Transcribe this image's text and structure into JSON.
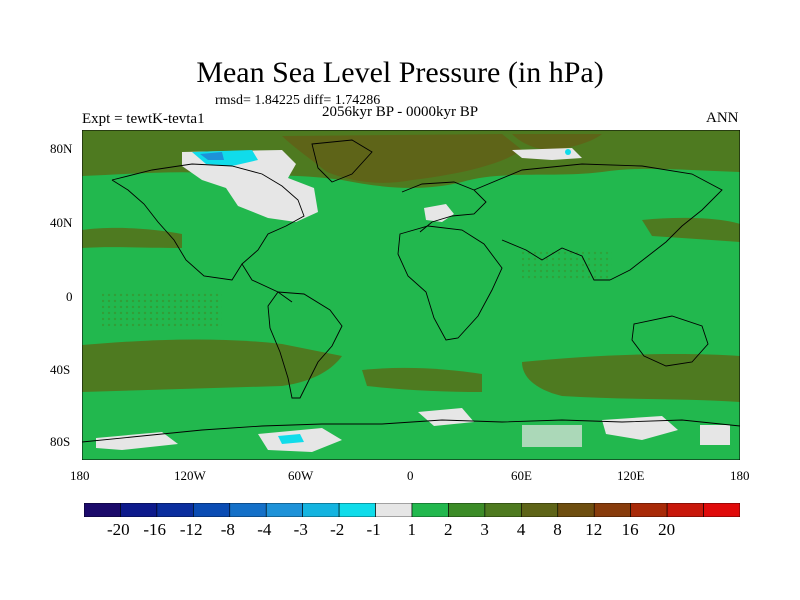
{
  "title": "Mean Sea Level Pressure (in hPa)",
  "stats_label": "rmsd= 1.84225 diff= 1.74286",
  "experiment_label": "Expt = tewtK-tevta1",
  "period_label": "2056kyr BP - 0000kyr BP",
  "season_label": "ANN",
  "lat_labels": [
    "80N",
    "40N",
    "0",
    "40S",
    "80S"
  ],
  "lon_labels": [
    "180",
    "120W",
    "60W",
    "0",
    "60E",
    "120E",
    "180"
  ],
  "colorbar": {
    "colors": [
      "#1b0a6b",
      "#0d1a8c",
      "#0a2e9e",
      "#0a4cb4",
      "#1470c8",
      "#1e92d8",
      "#14b4e0",
      "#10dcea",
      "#e6e6e6",
      "#22b84e",
      "#3c8c28",
      "#4e7a20",
      "#5e6418",
      "#6e4e10",
      "#883c0c",
      "#a82a08",
      "#c8180a",
      "#e00a0a"
    ],
    "labels": [
      "-20",
      "-16",
      "-12",
      "-8",
      "-4",
      "-3",
      "-2",
      "-1",
      "1",
      "2",
      "3",
      "4",
      "8",
      "12",
      "16",
      "20"
    ]
  },
  "map_colors": {
    "ocean_base": "#22b84e",
    "band_dark": "#4e7a20",
    "arctic_brown": "#5e6418",
    "near_zero": "#e6e6e6",
    "negative_light": "#10dcea",
    "negative_mid": "#1e92d8",
    "coast": "#000000"
  }
}
